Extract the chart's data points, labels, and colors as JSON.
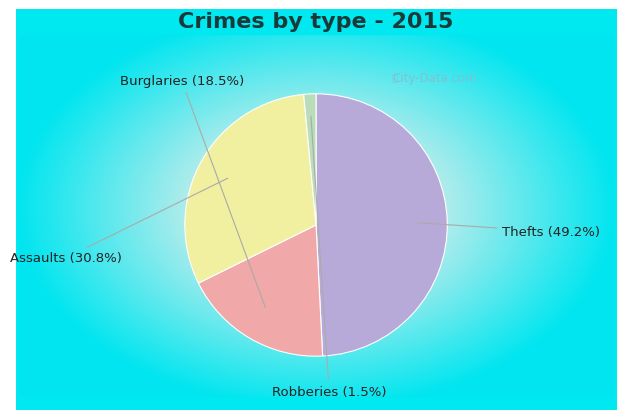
{
  "title": "Crimes by type - 2015",
  "slices": [
    {
      "label": "Thefts (49.2%)",
      "value": 49.2,
      "color": "#b8aad8"
    },
    {
      "label": "Burglaries (18.5%)",
      "value": 18.5,
      "color": "#f0a8a8"
    },
    {
      "label": "Assaults (30.8%)",
      "value": 30.8,
      "color": "#f0f0a0"
    },
    {
      "label": "Robberies (1.5%)",
      "value": 1.5,
      "color": "#b8ddb8"
    }
  ],
  "title_color": "#1a3a3a",
  "title_fontsize": 16,
  "label_fontsize": 9.5,
  "label_color": "#222222",
  "watermark": "City-Data.com",
  "watermark_color": "#88bbcc",
  "pie_edge_color": "white",
  "pie_linewidth": 0.8,
  "annotation_line_color": "#aaaaaa",
  "cyan_strip": "#00e8f0",
  "bg_center": "#e8f5ee",
  "bg_outer": "#00e0f0"
}
